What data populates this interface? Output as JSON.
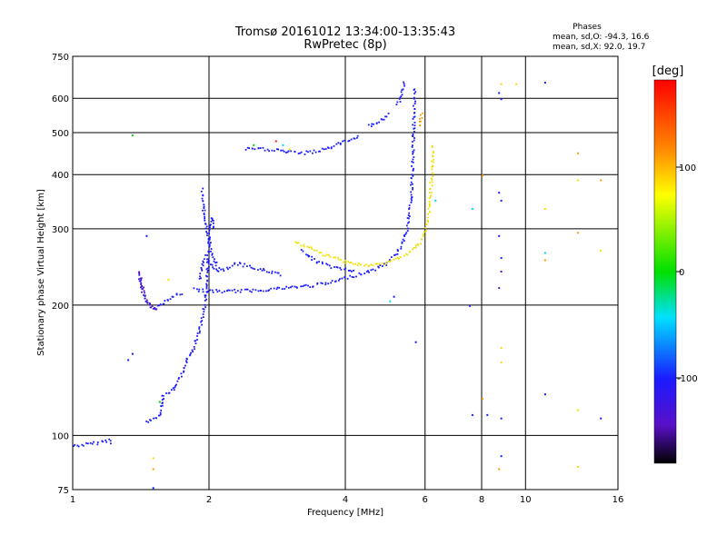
{
  "title_line1": "Tromsø 20161012 13:34:00-13:35:43",
  "title_line2": "RwPretec (8p)",
  "info": {
    "heading": "Phases",
    "line_o": "mean, sd,O: -94.3, 16.6",
    "line_x": "mean, sd,X:  92.0, 19.7"
  },
  "colorbar": {
    "label": "[deg]",
    "ticks": [
      "100",
      "0",
      "-100"
    ],
    "min": -180,
    "max": 180
  },
  "colors": {
    "blue": "#1a1aff",
    "purple": "#5a10c8",
    "yellow": "#f0e000",
    "orange": "#ff9a00",
    "cyan": "#00d8ff",
    "green": "#00c800",
    "red": "#ff2000"
  },
  "chart_data": {
    "type": "scatter",
    "title": "Tromsø 20161012 13:34:00-13:35:43",
    "subtitle": "RwPretec (8p)",
    "xlabel": "Frequency [MHz]",
    "ylabel": "Stationary phase Virtual Height [km]",
    "xscale": "log",
    "yscale": "log",
    "xlim": [
      1,
      16
    ],
    "ylim": [
      75,
      750
    ],
    "xticks": [
      1,
      2,
      4,
      6,
      8,
      10,
      16
    ],
    "xticklabels": [
      "1",
      "2",
      "4",
      "6",
      "8",
      "10",
      "16"
    ],
    "xgrid": [
      2,
      4,
      6,
      8,
      10
    ],
    "yticks": [
      75,
      100,
      200,
      300,
      400,
      500,
      600,
      750
    ],
    "yticklabels": [
      "75",
      "100",
      "200",
      "300",
      "400",
      "500",
      "600",
      "750"
    ],
    "ygrid": [
      100,
      200,
      300,
      400,
      500,
      600
    ],
    "grid": true,
    "series": [
      {
        "color": "blue",
        "polyline": [
          [
            1.0,
            95
          ],
          [
            1.1,
            96
          ],
          [
            1.15,
            97
          ],
          [
            1.2,
            98
          ],
          [
            1.22,
            96
          ]
        ]
      },
      {
        "color": "blue",
        "polyline": [
          [
            1.4,
            235
          ],
          [
            1.41,
            222
          ],
          [
            1.43,
            210
          ],
          [
            1.47,
            200
          ],
          [
            1.52,
            197
          ],
          [
            1.55,
            200
          ],
          [
            1.6,
            205
          ],
          [
            1.65,
            210
          ],
          [
            1.7,
            212
          ],
          [
            1.75,
            215
          ]
        ]
      },
      {
        "color": "purple",
        "polyline": [
          [
            1.4,
            240
          ],
          [
            1.41,
            228
          ],
          [
            1.43,
            215
          ],
          [
            1.46,
            205
          ],
          [
            1.5,
            198
          ],
          [
            1.55,
            196
          ]
        ]
      },
      {
        "color": "blue",
        "polyline": [
          [
            1.45,
            108
          ],
          [
            1.5,
            110
          ],
          [
            1.55,
            112
          ],
          [
            1.58,
            125
          ],
          [
            1.62,
            125
          ],
          [
            1.65,
            127
          ],
          [
            1.68,
            130
          ],
          [
            1.7,
            135
          ],
          [
            1.75,
            140
          ],
          [
            1.78,
            150
          ],
          [
            1.82,
            155
          ],
          [
            1.85,
            162
          ],
          [
            1.88,
            170
          ],
          [
            1.92,
            185
          ],
          [
            1.95,
            200
          ],
          [
            1.97,
            220
          ],
          [
            1.98,
            250
          ],
          [
            2.0,
            290
          ],
          [
            2.02,
            320
          ],
          [
            2.05,
            300
          ]
        ]
      },
      {
        "color": "blue",
        "polyline": [
          [
            1.9,
            230
          ],
          [
            1.95,
            260
          ],
          [
            2.0,
            250
          ],
          [
            2.1,
            240
          ],
          [
            2.2,
            245
          ],
          [
            2.3,
            250
          ],
          [
            2.4,
            248
          ],
          [
            2.5,
            244
          ],
          [
            2.7,
            240
          ],
          [
            2.9,
            236
          ]
        ]
      },
      {
        "color": "blue",
        "polyline": [
          [
            1.92,
            370
          ],
          [
            1.94,
            330
          ],
          [
            1.97,
            300
          ],
          [
            2.0,
            280
          ],
          [
            2.03,
            260
          ],
          [
            2.06,
            250
          ],
          [
            2.1,
            245
          ]
        ]
      },
      {
        "color": "blue",
        "polyline": [
          [
            1.85,
            218
          ],
          [
            2.0,
            216
          ],
          [
            2.2,
            216
          ],
          [
            2.5,
            217
          ],
          [
            2.8,
            219
          ],
          [
            3.1,
            221
          ],
          [
            3.4,
            223
          ],
          [
            3.7,
            226
          ],
          [
            4.0,
            232
          ],
          [
            4.3,
            237
          ],
          [
            4.6,
            242
          ],
          [
            4.9,
            250
          ],
          [
            5.1,
            260
          ],
          [
            5.3,
            275
          ],
          [
            5.45,
            300
          ],
          [
            5.55,
            340
          ],
          [
            5.6,
            400
          ],
          [
            5.63,
            480
          ],
          [
            5.65,
            560
          ],
          [
            5.67,
            640
          ]
        ]
      },
      {
        "color": "blue",
        "polyline": [
          [
            2.4,
            460
          ],
          [
            2.6,
            460
          ],
          [
            2.8,
            458
          ],
          [
            3.0,
            452
          ],
          [
            3.2,
            450
          ],
          [
            3.5,
            456
          ],
          [
            3.8,
            470
          ],
          [
            4.1,
            485
          ],
          [
            4.3,
            497
          ]
        ]
      },
      {
        "color": "blue",
        "polyline": [
          [
            4.5,
            520
          ],
          [
            4.7,
            530
          ],
          [
            4.9,
            545
          ],
          [
            5.0,
            560
          ]
        ]
      },
      {
        "color": "blue",
        "polyline": [
          [
            5.2,
            580
          ],
          [
            5.3,
            610
          ],
          [
            5.35,
            640
          ],
          [
            5.4,
            660
          ]
        ]
      },
      {
        "color": "blue",
        "polyline": [
          [
            3.2,
            268
          ],
          [
            3.4,
            255
          ],
          [
            3.6,
            248
          ],
          [
            3.8,
            245
          ],
          [
            4.0,
            242
          ],
          [
            4.2,
            242
          ]
        ]
      },
      {
        "color": "yellow",
        "polyline": [
          [
            3.1,
            280
          ],
          [
            3.3,
            272
          ],
          [
            3.6,
            262
          ],
          [
            3.9,
            255
          ],
          [
            4.2,
            250
          ],
          [
            4.5,
            247
          ],
          [
            4.8,
            250
          ],
          [
            5.1,
            255
          ],
          [
            5.4,
            262
          ],
          [
            5.7,
            272
          ],
          [
            5.9,
            285
          ],
          [
            6.0,
            300
          ],
          [
            6.1,
            330
          ],
          [
            6.15,
            370
          ],
          [
            6.2,
            420
          ],
          [
            6.22,
            470
          ]
        ]
      },
      {
        "color": "orange",
        "polyline": [
          [
            5.8,
            520
          ],
          [
            5.85,
            540
          ],
          [
            5.9,
            560
          ]
        ]
      }
    ],
    "scattered_points": [
      {
        "f": 1.35,
        "h": 495,
        "c": "green"
      },
      {
        "f": 1.45,
        "h": 290,
        "c": "blue"
      },
      {
        "f": 1.35,
        "h": 155,
        "c": "blue"
      },
      {
        "f": 1.32,
        "h": 150,
        "c": "blue"
      },
      {
        "f": 1.5,
        "h": 89,
        "c": "yellow"
      },
      {
        "f": 1.5,
        "h": 84,
        "c": "orange"
      },
      {
        "f": 1.5,
        "h": 76,
        "c": "blue"
      },
      {
        "f": 1.55,
        "h": 120,
        "c": "green"
      },
      {
        "f": 1.62,
        "h": 230,
        "c": "yellow"
      },
      {
        "f": 2.5,
        "h": 470,
        "c": "green"
      },
      {
        "f": 2.8,
        "h": 480,
        "c": "red"
      },
      {
        "f": 2.9,
        "h": 470,
        "c": "cyan"
      },
      {
        "f": 3.0,
        "h": 460,
        "c": "yellow"
      },
      {
        "f": 5.0,
        "h": 205,
        "c": "cyan"
      },
      {
        "f": 5.1,
        "h": 210,
        "c": "blue"
      },
      {
        "f": 5.7,
        "h": 165,
        "c": "blue"
      },
      {
        "f": 6.3,
        "h": 350,
        "c": "cyan"
      },
      {
        "f": 7.5,
        "h": 200,
        "c": "blue"
      },
      {
        "f": 7.6,
        "h": 335,
        "c": "cyan"
      },
      {
        "f": 7.6,
        "h": 112,
        "c": "blue"
      },
      {
        "f": 8.0,
        "h": 400,
        "c": "orange"
      },
      {
        "f": 8.0,
        "h": 122,
        "c": "orange"
      },
      {
        "f": 8.2,
        "h": 112,
        "c": "blue"
      },
      {
        "f": 8.7,
        "h": 620,
        "c": "blue"
      },
      {
        "f": 8.8,
        "h": 600,
        "c": "blue"
      },
      {
        "f": 8.8,
        "h": 650,
        "c": "yellow"
      },
      {
        "f": 8.7,
        "h": 365,
        "c": "blue"
      },
      {
        "f": 8.8,
        "h": 350,
        "c": "blue"
      },
      {
        "f": 8.7,
        "h": 290,
        "c": "blue"
      },
      {
        "f": 8.8,
        "h": 258,
        "c": "blue"
      },
      {
        "f": 8.7,
        "h": 220,
        "c": "purple"
      },
      {
        "f": 8.8,
        "h": 240,
        "c": "purple"
      },
      {
        "f": 8.8,
        "h": 160,
        "c": "yellow"
      },
      {
        "f": 8.8,
        "h": 148,
        "c": "yellow"
      },
      {
        "f": 8.8,
        "h": 110,
        "c": "blue"
      },
      {
        "f": 8.7,
        "h": 84,
        "c": "orange"
      },
      {
        "f": 8.8,
        "h": 90,
        "c": "blue"
      },
      {
        "f": 9.5,
        "h": 650,
        "c": "yellow"
      },
      {
        "f": 11.0,
        "h": 655,
        "c": "blue"
      },
      {
        "f": 11.0,
        "h": 335,
        "c": "yellow"
      },
      {
        "f": 11.0,
        "h": 265,
        "c": "cyan"
      },
      {
        "f": 11.0,
        "h": 255,
        "c": "orange"
      },
      {
        "f": 11.0,
        "h": 125,
        "c": "blue"
      },
      {
        "f": 13.0,
        "h": 450,
        "c": "orange"
      },
      {
        "f": 13.0,
        "h": 390,
        "c": "yellow"
      },
      {
        "f": 13.0,
        "h": 295,
        "c": "orange"
      },
      {
        "f": 13.0,
        "h": 115,
        "c": "yellow"
      },
      {
        "f": 13.0,
        "h": 85,
        "c": "yellow"
      },
      {
        "f": 14.6,
        "h": 390,
        "c": "orange"
      },
      {
        "f": 14.6,
        "h": 268,
        "c": "yellow"
      },
      {
        "f": 14.6,
        "h": 110,
        "c": "blue"
      }
    ]
  }
}
